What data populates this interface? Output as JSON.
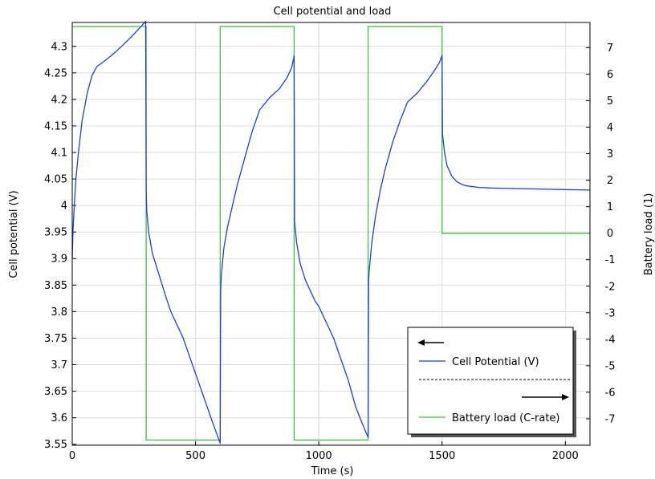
{
  "chart_data": {
    "type": "line",
    "title": "Cell potential and load",
    "xlabel": "Time (s)",
    "ylabel_left": "Cell potential (V)",
    "ylabel_right": "Battery load (1)",
    "xlim": [
      0,
      2100
    ],
    "ylim_left": [
      3.548,
      4.345
    ],
    "ylim_right": [
      -8.0,
      7.95
    ],
    "x_ticks": [
      0,
      500,
      1000,
      1500,
      2000
    ],
    "x_tick_labels": [
      "0",
      "500",
      "1000",
      "1500",
      "2000"
    ],
    "y_left_ticks": [
      3.55,
      3.6,
      3.65,
      3.7,
      3.75,
      3.8,
      3.85,
      3.9,
      3.95,
      4.0,
      4.05,
      4.1,
      4.15,
      4.2,
      4.25,
      4.3
    ],
    "y_left_tick_labels": [
      "3.55",
      "3.6",
      "3.65",
      "3.7",
      "3.75",
      "3.8",
      "3.85",
      "3.9",
      "3.95",
      "4",
      "4.05",
      "4.1",
      "4.15",
      "4.2",
      "4.25",
      "4.3"
    ],
    "y_right_ticks": [
      -7,
      -6,
      -5,
      -4,
      -3,
      -2,
      -1,
      0,
      1,
      2,
      3,
      4,
      5,
      6,
      7
    ],
    "y_right_tick_labels": [
      "-7",
      "-6",
      "-5",
      "-4",
      "-3",
      "-2",
      "-1",
      "0",
      "1",
      "2",
      "3",
      "4",
      "5",
      "6",
      "7"
    ],
    "grid": true,
    "legend_position": "bottom-right",
    "series": [
      {
        "name": "Cell Potential (V)",
        "axis": "left",
        "color": "#1f3fd6",
        "x": [
          0,
          3,
          8,
          15,
          25,
          40,
          60,
          80,
          100,
          130,
          160,
          200,
          240,
          270,
          298,
          300,
          302,
          310,
          325,
          345,
          365,
          385,
          400,
          420,
          450,
          480,
          510,
          540,
          570,
          590,
          600,
          602,
          605,
          615,
          630,
          650,
          670,
          700,
          730,
          760,
          800,
          840,
          870,
          890,
          900,
          902,
          910,
          925,
          945,
          965,
          985,
          1000,
          1030,
          1060,
          1090,
          1120,
          1150,
          1180,
          1200,
          1202,
          1205,
          1215,
          1230,
          1250,
          1270,
          1300,
          1330,
          1360,
          1400,
          1440,
          1470,
          1490,
          1500,
          1502,
          1510,
          1520,
          1540,
          1560,
          1580,
          1600,
          1650,
          1700,
          1800,
          1900,
          2000,
          2100
        ],
        "y": [
          3.9,
          3.95,
          4.0,
          4.05,
          4.1,
          4.16,
          4.21,
          4.245,
          4.262,
          4.272,
          4.283,
          4.3,
          4.318,
          4.333,
          4.347,
          4.03,
          3.99,
          3.95,
          3.91,
          3.88,
          3.85,
          3.82,
          3.8,
          3.78,
          3.75,
          3.71,
          3.67,
          3.63,
          3.59,
          3.565,
          3.552,
          3.84,
          3.87,
          3.92,
          3.96,
          4.0,
          4.04,
          4.09,
          4.14,
          4.18,
          4.203,
          4.22,
          4.24,
          4.26,
          4.282,
          3.97,
          3.93,
          3.89,
          3.86,
          3.84,
          3.82,
          3.81,
          3.78,
          3.75,
          3.71,
          3.67,
          3.62,
          3.585,
          3.563,
          3.86,
          3.88,
          3.93,
          3.98,
          4.03,
          4.07,
          4.12,
          4.16,
          4.195,
          4.212,
          4.235,
          4.255,
          4.27,
          4.283,
          4.135,
          4.1,
          4.075,
          4.055,
          4.045,
          4.04,
          4.037,
          4.034,
          4.033,
          4.032,
          4.031,
          4.03,
          4.029
        ]
      },
      {
        "name": "Battery load (C-rate)",
        "axis": "right",
        "color": "#3cc23c",
        "x": [
          0,
          300,
          300,
          600,
          600,
          900,
          900,
          1200,
          1200,
          1500,
          1500,
          2100
        ],
        "y": [
          7.8,
          7.8,
          -7.8,
          -7.8,
          7.8,
          7.8,
          -7.8,
          -7.8,
          7.8,
          7.8,
          0,
          0
        ]
      }
    ]
  }
}
